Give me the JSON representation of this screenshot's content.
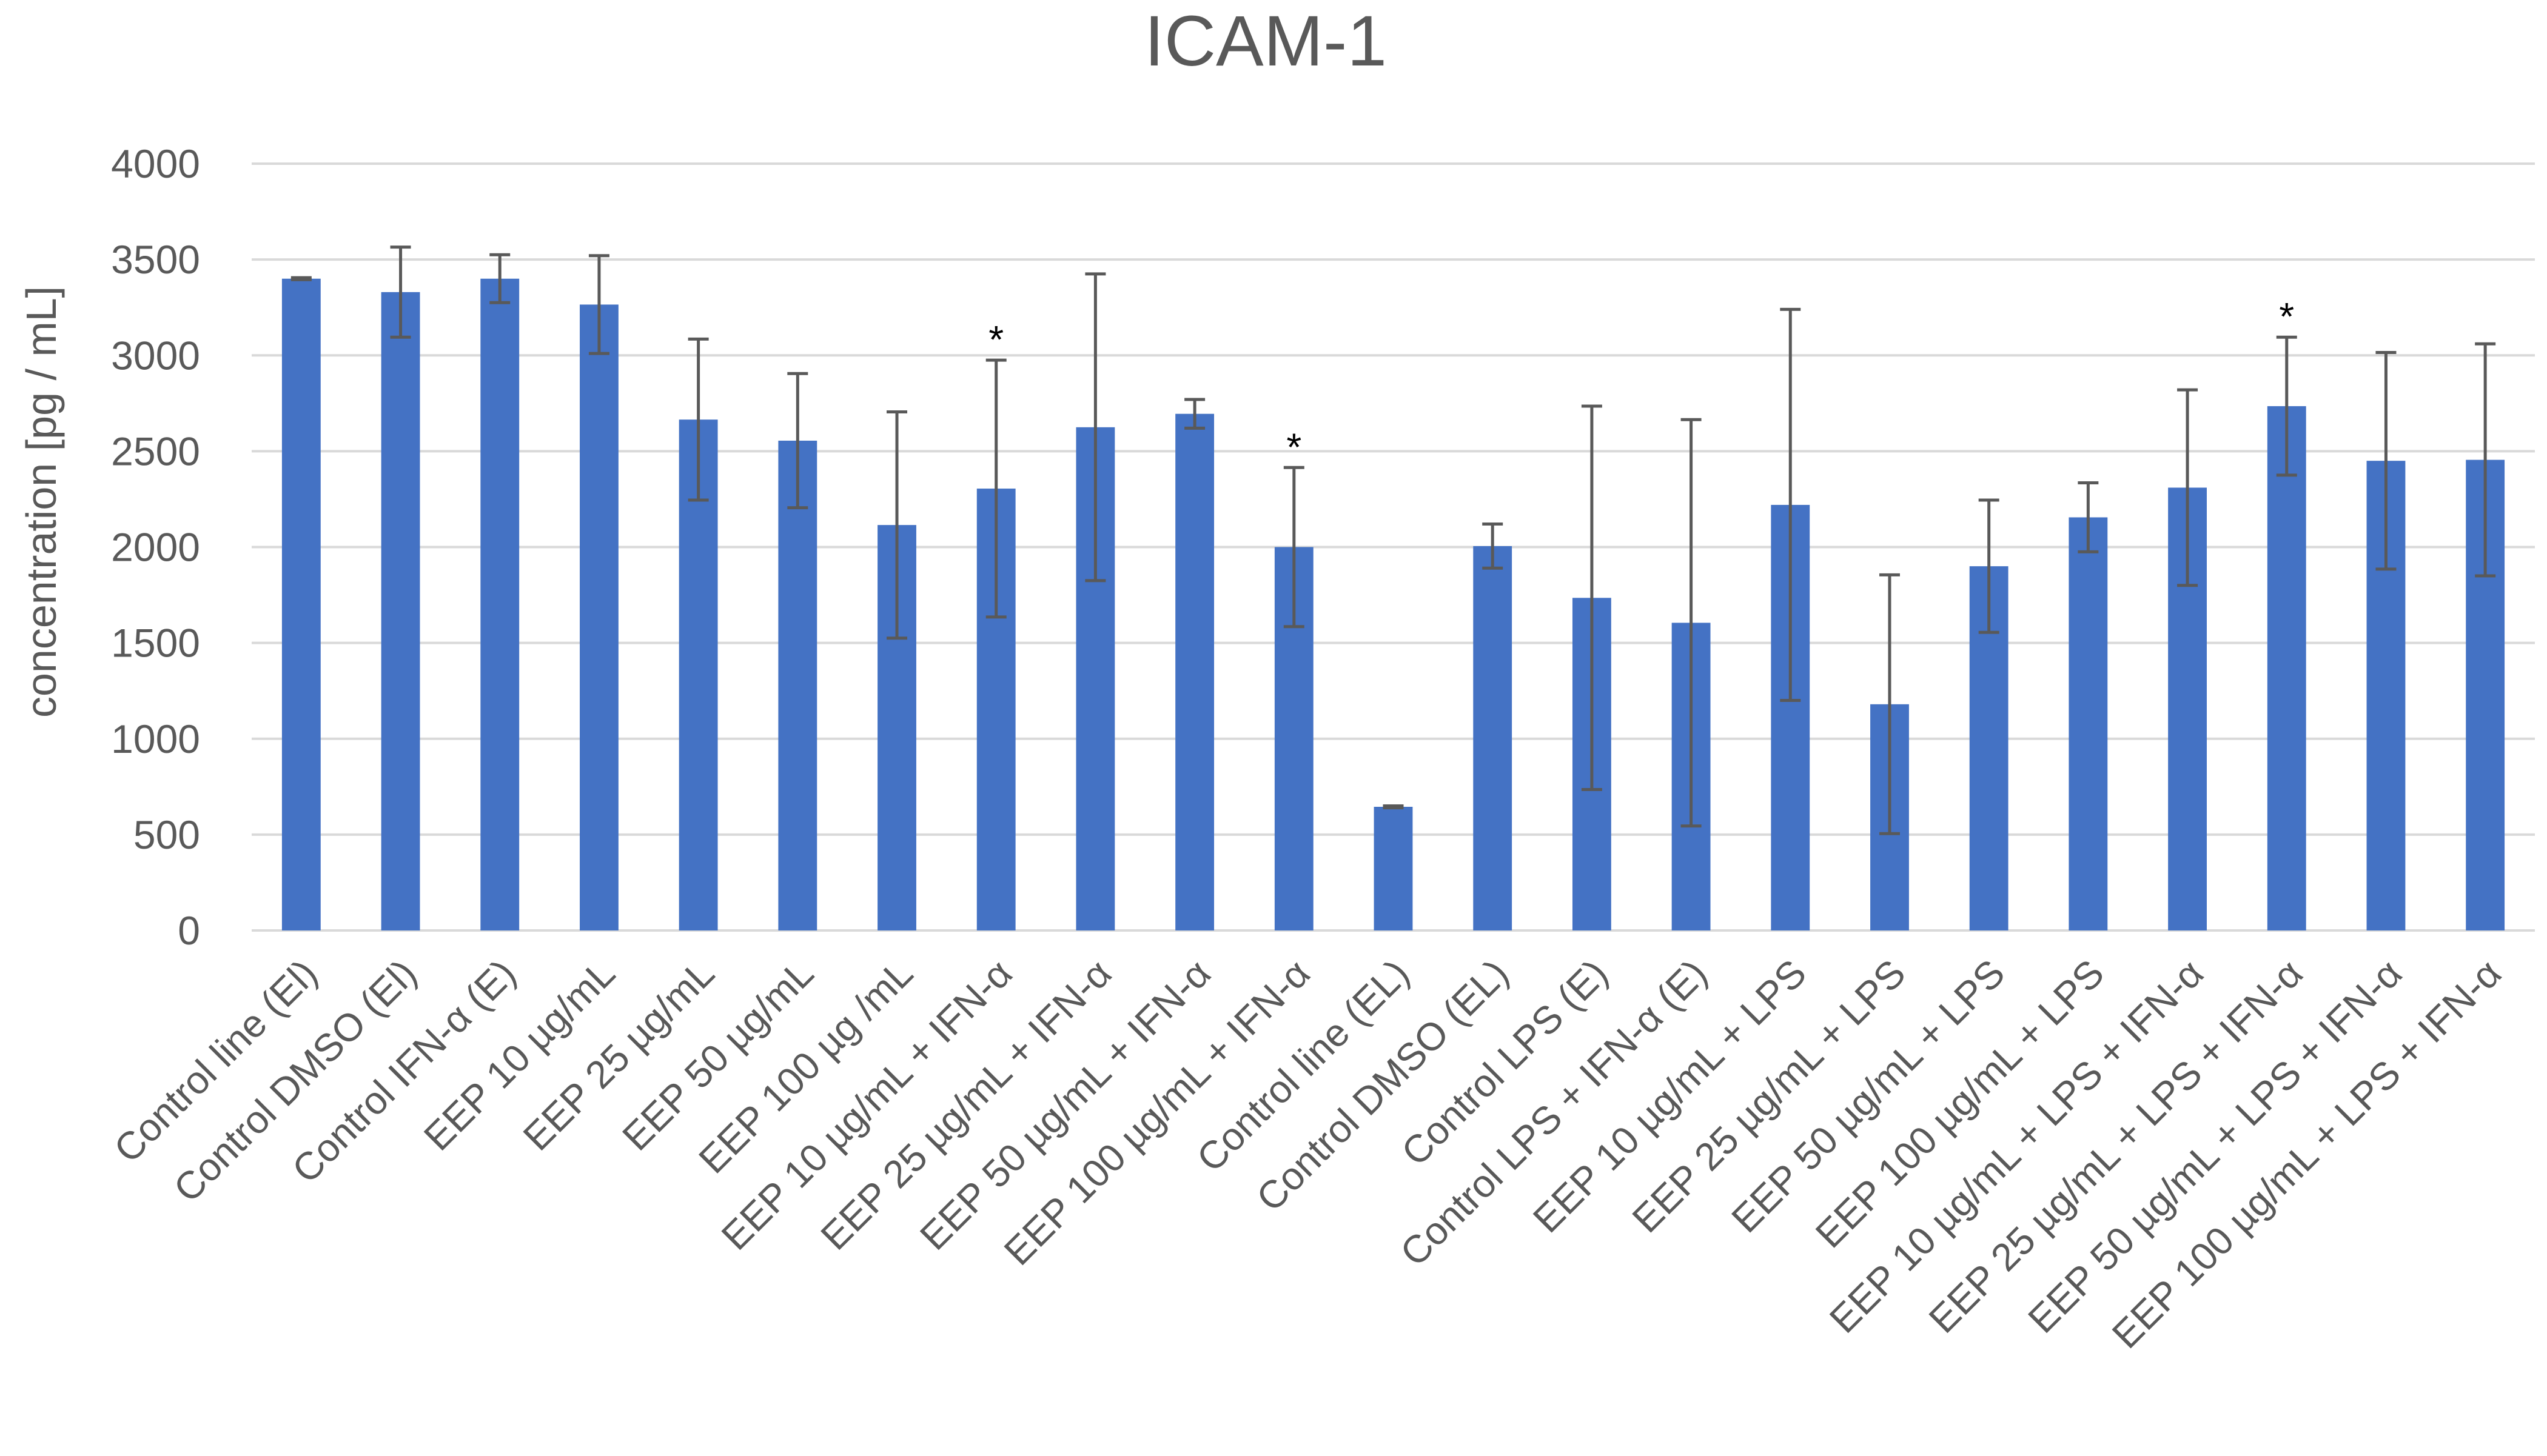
{
  "colors": {
    "bar": "#4472C4",
    "grid": "#D9D9D9",
    "error_bar": "#595959",
    "text": "#595959",
    "marker": "#000000"
  },
  "chart_data": {
    "type": "bar",
    "title": "ICAM-1",
    "xlabel": "",
    "ylabel": "concentration [pg / mL]",
    "ylim": [
      0,
      4000
    ],
    "yticks": [
      0,
      500,
      1000,
      1500,
      2000,
      2500,
      3000,
      3500,
      4000
    ],
    "grid": true,
    "legend": "none",
    "categories": [
      "Control line (El)",
      "Control DMSO (El)",
      "Control IFN-α (E)",
      "EEP 10 µg/mL",
      "EEP 25 µg/mL",
      "EEP 50 µg/mL",
      "EEP 100 µg /mL",
      "EEP 10 µg/mL + IFN-α",
      "EEP 25 µg/mL + IFN-α",
      "EEP 50 µg/mL + IFN-α",
      "EEP 100 µg/mL + IFN-α",
      "Control line (EL)",
      "Control DMSO (EL)",
      "Control LPS (E)",
      "Control LPS + IFN-α (E)",
      "EEP 10 µg/mL + LPS",
      "EEP 25 µg/mL + LPS",
      "EEP 50 µg/mL + LPS",
      "EEP 100 µg/mL + LPS",
      "EEP 10 µg/mL + LPS + IFN-α",
      "EEP 25 µg/mL + LPS + IFN-α",
      "EEP 50 µg/mL + LPS + IFN-α",
      "EEP 100 µg/mL + LPS + IFN-α"
    ],
    "values": [
      3400,
      3330,
      3400,
      3265,
      2665,
      2555,
      2115,
      2305,
      2625,
      2695,
      2000,
      645,
      2005,
      1735,
      1605,
      2220,
      1180,
      1900,
      2155,
      2310,
      2735,
      2450,
      2455
    ],
    "errors": [
      5,
      235,
      125,
      255,
      420,
      350,
      590,
      670,
      800,
      75,
      415,
      5,
      115,
      1000,
      1060,
      1020,
      675,
      345,
      180,
      510,
      360,
      565,
      605
    ],
    "significance_marker": "*",
    "significant_indices": [
      7,
      10,
      20
    ]
  }
}
